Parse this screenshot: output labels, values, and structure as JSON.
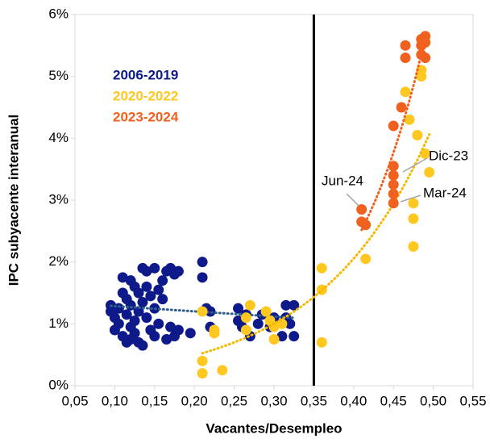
{
  "chart_data": {
    "type": "scatter",
    "xlabel": "Vacantes/Desempleo",
    "ylabel": "IPC subyacente interanual",
    "xlim": [
      0.05,
      0.55
    ],
    "xticks": [
      {
        "value": 0.05,
        "label": "0,05"
      },
      {
        "value": 0.1,
        "label": "0,10"
      },
      {
        "value": 0.15,
        "label": "0,15"
      },
      {
        "value": 0.2,
        "label": "0,20"
      },
      {
        "value": 0.25,
        "label": "0,25"
      },
      {
        "value": 0.3,
        "label": "0,30"
      },
      {
        "value": 0.35,
        "label": "0,35"
      },
      {
        "value": 0.4,
        "label": "0,40"
      },
      {
        "value": 0.45,
        "label": "0,45"
      },
      {
        "value": 0.5,
        "label": "0,50"
      },
      {
        "value": 0.55,
        "label": "0,55"
      }
    ],
    "ylim": [
      0,
      6
    ],
    "yticks": [
      {
        "value": 0,
        "label": "0%"
      },
      {
        "value": 1,
        "label": "1%"
      },
      {
        "value": 2,
        "label": "2%"
      },
      {
        "value": 3,
        "label": "3%"
      },
      {
        "value": 4,
        "label": "4%"
      },
      {
        "value": 5,
        "label": "5%"
      },
      {
        "value": 6,
        "label": "6%"
      }
    ],
    "vline": 0.35,
    "legend": "upper-left",
    "series": [
      {
        "name": "2006-2019",
        "color": "#0f1a8a",
        "trendline": "linear",
        "trend_color": "#2e5f8a",
        "x": [
          0.095,
          0.095,
          0.1,
          0.1,
          0.105,
          0.105,
          0.11,
          0.11,
          0.11,
          0.115,
          0.115,
          0.115,
          0.12,
          0.12,
          0.12,
          0.12,
          0.125,
          0.125,
          0.125,
          0.13,
          0.13,
          0.13,
          0.135,
          0.135,
          0.135,
          0.14,
          0.14,
          0.14,
          0.145,
          0.145,
          0.15,
          0.15,
          0.15,
          0.155,
          0.155,
          0.16,
          0.16,
          0.165,
          0.165,
          0.17,
          0.17,
          0.175,
          0.175,
          0.18,
          0.18,
          0.195,
          0.21,
          0.21,
          0.215,
          0.22,
          0.22,
          0.255,
          0.255,
          0.26,
          0.265,
          0.27,
          0.28,
          0.285,
          0.295,
          0.3,
          0.31,
          0.315,
          0.315,
          0.32,
          0.325,
          0.325
        ],
        "values": [
          1.3,
          1.2,
          1.1,
          0.9,
          1.25,
          1.0,
          1.5,
          1.75,
          0.8,
          1.4,
          0.7,
          1.15,
          1.7,
          1.3,
          0.95,
          0.75,
          1.6,
          1.05,
          0.85,
          1.5,
          1.2,
          0.7,
          1.9,
          1.35,
          0.65,
          1.85,
          1.6,
          1.1,
          1.45,
          0.9,
          1.9,
          1.25,
          0.8,
          1.55,
          1.0,
          1.7,
          1.4,
          1.85,
          0.75,
          1.9,
          0.95,
          1.8,
          0.8,
          1.85,
          0.9,
          0.85,
          2.0,
          1.75,
          1.25,
          1.2,
          0.95,
          1.25,
          1.05,
          0.95,
          1.15,
          0.8,
          1.0,
          1.15,
          0.95,
          1.1,
          0.8,
          1.1,
          1.3,
          1.0,
          1.3,
          0.8
        ]
      },
      {
        "name": "2020-2022",
        "color": "#ffc820",
        "trendline": "exponential",
        "trend_color": "#f5b800",
        "x": [
          0.21,
          0.21,
          0.21,
          0.225,
          0.225,
          0.235,
          0.265,
          0.265,
          0.27,
          0.29,
          0.295,
          0.3,
          0.3,
          0.31,
          0.36,
          0.36,
          0.36,
          0.415,
          0.415,
          0.465,
          0.47,
          0.475,
          0.475,
          0.475,
          0.48,
          0.485,
          0.485,
          0.49,
          0.495
        ],
        "values": [
          0.4,
          0.2,
          1.2,
          0.9,
          0.85,
          0.25,
          1.1,
          0.9,
          1.3,
          1.2,
          1.05,
          0.95,
          0.75,
          1.0,
          1.9,
          1.55,
          0.7,
          2.05,
          2.6,
          4.75,
          4.3,
          2.95,
          2.7,
          2.25,
          4.05,
          5.1,
          5.0,
          3.75,
          3.45
        ]
      },
      {
        "name": "2023-2024",
        "color": "#f0601e",
        "trendline": "exponential",
        "trend_color": "#f0601e",
        "x": [
          0.41,
          0.41,
          0.415,
          0.45,
          0.45,
          0.45,
          0.45,
          0.45,
          0.45,
          0.46,
          0.465,
          0.465,
          0.485,
          0.485,
          0.485,
          0.49,
          0.49,
          0.49
        ],
        "values": [
          2.85,
          2.65,
          2.6,
          4.2,
          3.55,
          3.4,
          3.25,
          3.1,
          2.95,
          4.5,
          5.5,
          5.3,
          5.6,
          5.5,
          5.35,
          5.65,
          5.3,
          5.55
        ]
      }
    ],
    "annotations": [
      "Jun-24",
      "Dic-23",
      "Mar-24"
    ]
  }
}
